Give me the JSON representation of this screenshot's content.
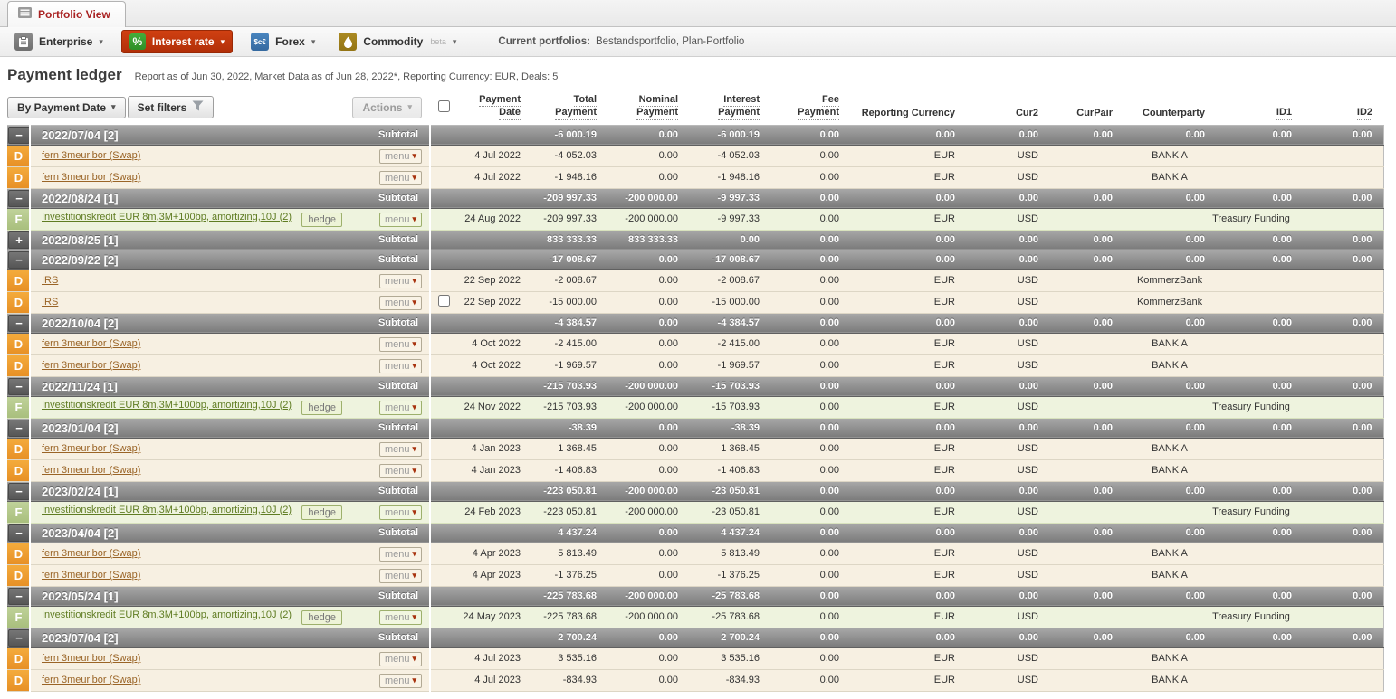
{
  "tab": {
    "label": "Portfolio View",
    "icon": "ledger-icon"
  },
  "toolbar": {
    "modules": [
      {
        "id": "enterprise",
        "label": "Enterprise",
        "icon": "clipboard-icon",
        "active": false
      },
      {
        "id": "interest-rate",
        "label": "Interest rate",
        "icon": "percent-icon",
        "active": true
      },
      {
        "id": "forex",
        "label": "Forex",
        "icon": "currency-exchange-icon",
        "icon_text": "$c€",
        "active": false
      },
      {
        "id": "commodity",
        "label": "Commodity",
        "icon": "droplet-icon",
        "beta_tag": "beta",
        "active": false
      }
    ],
    "current_portfolios_label": "Current portfolios:",
    "current_portfolios_value": "Bestandsportfolio, Plan-Portfolio"
  },
  "page": {
    "title": "Payment ledger",
    "subtitle": "Report as of Jun 30, 2022, Market Data as of Jun 28, 2022*, Reporting Currency: EUR, Deals: 5"
  },
  "controls": {
    "group_by_label": "By Payment Date",
    "set_filters_label": "Set filters",
    "actions_label": "Actions"
  },
  "colors": {
    "active_module_red": "#c1360e",
    "percent_green": "#2fa32f",
    "forex_blue": "#3a76b5",
    "commodity_gold": "#a5831c",
    "tab_text_red": "#a92222",
    "band_gray": "#7b7b7b",
    "d_badge_orange": "#eda032",
    "f_badge_green": "#b5c98f",
    "d_row_beige": "#f7f0e2",
    "f_row_green": "#eef3de",
    "d_link_brown": "#9a6426",
    "f_link_green": "#5f7c22"
  },
  "ledger": {
    "subtotal_label": "Subtotal",
    "hedge_label": "hedge",
    "menu_label": "menu",
    "columns": [
      {
        "id": "date",
        "lines": [
          "Payment",
          "Date"
        ],
        "sortable": true
      },
      {
        "id": "total",
        "lines": [
          "Total",
          "Payment"
        ],
        "sortable": true
      },
      {
        "id": "nominal",
        "lines": [
          "Nominal",
          "Payment"
        ],
        "sortable": true
      },
      {
        "id": "interest",
        "lines": [
          "Interest",
          "Payment"
        ],
        "sortable": true
      },
      {
        "id": "fee",
        "lines": [
          "Fee",
          "Payment"
        ],
        "sortable": true
      },
      {
        "id": "repcur",
        "lines": [
          "Reporting Currency"
        ],
        "sortable": false
      },
      {
        "id": "cur2",
        "lines": [
          "Cur2"
        ],
        "sortable": false
      },
      {
        "id": "curpair",
        "lines": [
          "CurPair"
        ],
        "sortable": false
      },
      {
        "id": "cpty",
        "lines": [
          "Counterparty"
        ],
        "sortable": false
      },
      {
        "id": "id1",
        "lines": [
          "ID1"
        ],
        "sortable": true
      },
      {
        "id": "id2",
        "lines": [
          "ID2"
        ],
        "sortable": true
      }
    ],
    "groups": [
      {
        "title": "2022/07/04 [2]",
        "expanded": true,
        "subtotal": {
          "total": "-6 000.19",
          "nominal": "0.00",
          "interest": "-6 000.19",
          "fee": "0.00",
          "repcur": "0.00",
          "cur2": "0.00",
          "curpair": "0.00",
          "cpty": "0.00",
          "id1": "0.00",
          "id2": "0.00"
        },
        "rows": [
          {
            "type": "D",
            "name": "fern 3meuribor (Swap)",
            "hedge": false,
            "checkbox": false,
            "date": "4 Jul 2022",
            "total": "-4 052.03",
            "nominal": "0.00",
            "interest": "-4 052.03",
            "fee": "0.00",
            "repcur": "EUR",
            "cur2": "USD",
            "curpair": "",
            "cpty": "BANK A",
            "id1": "",
            "id2": ""
          },
          {
            "type": "D",
            "name": "fern 3meuribor (Swap)",
            "hedge": false,
            "checkbox": false,
            "date": "4 Jul 2022",
            "total": "-1 948.16",
            "nominal": "0.00",
            "interest": "-1 948.16",
            "fee": "0.00",
            "repcur": "EUR",
            "cur2": "USD",
            "curpair": "",
            "cpty": "BANK A",
            "id1": "",
            "id2": ""
          }
        ]
      },
      {
        "title": "2022/08/24 [1]",
        "expanded": true,
        "subtotal": {
          "total": "-209 997.33",
          "nominal": "-200 000.00",
          "interest": "-9 997.33",
          "fee": "0.00",
          "repcur": "0.00",
          "cur2": "0.00",
          "curpair": "0.00",
          "cpty": "0.00",
          "id1": "0.00",
          "id2": "0.00"
        },
        "rows": [
          {
            "type": "F",
            "name": "Investitionskredit EUR 8m,3M+100bp, amortizing,10J (2)",
            "hedge": true,
            "checkbox": false,
            "date": "24 Aug 2022",
            "total": "-209 997.33",
            "nominal": "-200 000.00",
            "interest": "-9 997.33",
            "fee": "0.00",
            "repcur": "EUR",
            "cur2": "USD",
            "curpair": "",
            "cpty": "Treasury Funding",
            "id1": "",
            "id2": ""
          }
        ]
      },
      {
        "title": "2022/08/25 [1]",
        "expanded": false,
        "subtotal": {
          "total": "833 333.33",
          "nominal": "833 333.33",
          "interest": "0.00",
          "fee": "0.00",
          "repcur": "0.00",
          "cur2": "0.00",
          "curpair": "0.00",
          "cpty": "0.00",
          "id1": "0.00",
          "id2": "0.00"
        },
        "rows": []
      },
      {
        "title": "2022/09/22 [2]",
        "expanded": true,
        "subtotal": {
          "total": "-17 008.67",
          "nominal": "0.00",
          "interest": "-17 008.67",
          "fee": "0.00",
          "repcur": "0.00",
          "cur2": "0.00",
          "curpair": "0.00",
          "cpty": "0.00",
          "id1": "0.00",
          "id2": "0.00"
        },
        "rows": [
          {
            "type": "D",
            "name": "IRS",
            "hedge": false,
            "checkbox": false,
            "date": "22 Sep 2022",
            "total": "-2 008.67",
            "nominal": "0.00",
            "interest": "-2 008.67",
            "fee": "0.00",
            "repcur": "EUR",
            "cur2": "USD",
            "curpair": "",
            "cpty": "KommerzBank",
            "id1": "",
            "id2": ""
          },
          {
            "type": "D",
            "name": "IRS",
            "hedge": false,
            "checkbox": true,
            "date": "22 Sep 2022",
            "total": "-15 000.00",
            "nominal": "0.00",
            "interest": "-15 000.00",
            "fee": "0.00",
            "repcur": "EUR",
            "cur2": "USD",
            "curpair": "",
            "cpty": "KommerzBank",
            "id1": "",
            "id2": ""
          }
        ]
      },
      {
        "title": "2022/10/04 [2]",
        "expanded": true,
        "subtotal": {
          "total": "-4 384.57",
          "nominal": "0.00",
          "interest": "-4 384.57",
          "fee": "0.00",
          "repcur": "0.00",
          "cur2": "0.00",
          "curpair": "0.00",
          "cpty": "0.00",
          "id1": "0.00",
          "id2": "0.00"
        },
        "rows": [
          {
            "type": "D",
            "name": "fern 3meuribor (Swap)",
            "hedge": false,
            "checkbox": false,
            "date": "4 Oct 2022",
            "total": "-2 415.00",
            "nominal": "0.00",
            "interest": "-2 415.00",
            "fee": "0.00",
            "repcur": "EUR",
            "cur2": "USD",
            "curpair": "",
            "cpty": "BANK A",
            "id1": "",
            "id2": ""
          },
          {
            "type": "D",
            "name": "fern 3meuribor (Swap)",
            "hedge": false,
            "checkbox": false,
            "date": "4 Oct 2022",
            "total": "-1 969.57",
            "nominal": "0.00",
            "interest": "-1 969.57",
            "fee": "0.00",
            "repcur": "EUR",
            "cur2": "USD",
            "curpair": "",
            "cpty": "BANK A",
            "id1": "",
            "id2": ""
          }
        ]
      },
      {
        "title": "2022/11/24 [1]",
        "expanded": true,
        "subtotal": {
          "total": "-215 703.93",
          "nominal": "-200 000.00",
          "interest": "-15 703.93",
          "fee": "0.00",
          "repcur": "0.00",
          "cur2": "0.00",
          "curpair": "0.00",
          "cpty": "0.00",
          "id1": "0.00",
          "id2": "0.00"
        },
        "rows": [
          {
            "type": "F",
            "name": "Investitionskredit EUR 8m,3M+100bp, amortizing,10J (2)",
            "hedge": true,
            "checkbox": false,
            "date": "24 Nov 2022",
            "total": "-215 703.93",
            "nominal": "-200 000.00",
            "interest": "-15 703.93",
            "fee": "0.00",
            "repcur": "EUR",
            "cur2": "USD",
            "curpair": "",
            "cpty": "Treasury Funding",
            "id1": "",
            "id2": ""
          }
        ]
      },
      {
        "title": "2023/01/04 [2]",
        "expanded": true,
        "subtotal": {
          "total": "-38.39",
          "nominal": "0.00",
          "interest": "-38.39",
          "fee": "0.00",
          "repcur": "0.00",
          "cur2": "0.00",
          "curpair": "0.00",
          "cpty": "0.00",
          "id1": "0.00",
          "id2": "0.00"
        },
        "rows": [
          {
            "type": "D",
            "name": "fern 3meuribor (Swap)",
            "hedge": false,
            "checkbox": false,
            "date": "4 Jan 2023",
            "total": "1 368.45",
            "nominal": "0.00",
            "interest": "1 368.45",
            "fee": "0.00",
            "repcur": "EUR",
            "cur2": "USD",
            "curpair": "",
            "cpty": "BANK A",
            "id1": "",
            "id2": ""
          },
          {
            "type": "D",
            "name": "fern 3meuribor (Swap)",
            "hedge": false,
            "checkbox": false,
            "date": "4 Jan 2023",
            "total": "-1 406.83",
            "nominal": "0.00",
            "interest": "-1 406.83",
            "fee": "0.00",
            "repcur": "EUR",
            "cur2": "USD",
            "curpair": "",
            "cpty": "BANK A",
            "id1": "",
            "id2": ""
          }
        ]
      },
      {
        "title": "2023/02/24 [1]",
        "expanded": true,
        "subtotal": {
          "total": "-223 050.81",
          "nominal": "-200 000.00",
          "interest": "-23 050.81",
          "fee": "0.00",
          "repcur": "0.00",
          "cur2": "0.00",
          "curpair": "0.00",
          "cpty": "0.00",
          "id1": "0.00",
          "id2": "0.00"
        },
        "rows": [
          {
            "type": "F",
            "name": "Investitionskredit EUR 8m,3M+100bp, amortizing,10J (2)",
            "hedge": true,
            "checkbox": false,
            "date": "24 Feb 2023",
            "total": "-223 050.81",
            "nominal": "-200 000.00",
            "interest": "-23 050.81",
            "fee": "0.00",
            "repcur": "EUR",
            "cur2": "USD",
            "curpair": "",
            "cpty": "Treasury Funding",
            "id1": "",
            "id2": ""
          }
        ]
      },
      {
        "title": "2023/04/04 [2]",
        "expanded": true,
        "subtotal": {
          "total": "4 437.24",
          "nominal": "0.00",
          "interest": "4 437.24",
          "fee": "0.00",
          "repcur": "0.00",
          "cur2": "0.00",
          "curpair": "0.00",
          "cpty": "0.00",
          "id1": "0.00",
          "id2": "0.00"
        },
        "rows": [
          {
            "type": "D",
            "name": "fern 3meuribor (Swap)",
            "hedge": false,
            "checkbox": false,
            "date": "4 Apr 2023",
            "total": "5 813.49",
            "nominal": "0.00",
            "interest": "5 813.49",
            "fee": "0.00",
            "repcur": "EUR",
            "cur2": "USD",
            "curpair": "",
            "cpty": "BANK A",
            "id1": "",
            "id2": ""
          },
          {
            "type": "D",
            "name": "fern 3meuribor (Swap)",
            "hedge": false,
            "checkbox": false,
            "date": "4 Apr 2023",
            "total": "-1 376.25",
            "nominal": "0.00",
            "interest": "-1 376.25",
            "fee": "0.00",
            "repcur": "EUR",
            "cur2": "USD",
            "curpair": "",
            "cpty": "BANK A",
            "id1": "",
            "id2": ""
          }
        ]
      },
      {
        "title": "2023/05/24 [1]",
        "expanded": true,
        "subtotal": {
          "total": "-225 783.68",
          "nominal": "-200 000.00",
          "interest": "-25 783.68",
          "fee": "0.00",
          "repcur": "0.00",
          "cur2": "0.00",
          "curpair": "0.00",
          "cpty": "0.00",
          "id1": "0.00",
          "id2": "0.00"
        },
        "rows": [
          {
            "type": "F",
            "name": "Investitionskredit EUR 8m,3M+100bp, amortizing,10J (2)",
            "hedge": true,
            "checkbox": false,
            "date": "24 May 2023",
            "total": "-225 783.68",
            "nominal": "-200 000.00",
            "interest": "-25 783.68",
            "fee": "0.00",
            "repcur": "EUR",
            "cur2": "USD",
            "curpair": "",
            "cpty": "Treasury Funding",
            "id1": "",
            "id2": ""
          }
        ]
      },
      {
        "title": "2023/07/04 [2]",
        "expanded": true,
        "subtotal": {
          "total": "2 700.24",
          "nominal": "0.00",
          "interest": "2 700.24",
          "fee": "0.00",
          "repcur": "0.00",
          "cur2": "0.00",
          "curpair": "0.00",
          "cpty": "0.00",
          "id1": "0.00",
          "id2": "0.00"
        },
        "rows": [
          {
            "type": "D",
            "name": "fern 3meuribor (Swap)",
            "hedge": false,
            "checkbox": false,
            "date": "4 Jul 2023",
            "total": "3 535.16",
            "nominal": "0.00",
            "interest": "3 535.16",
            "fee": "0.00",
            "repcur": "EUR",
            "cur2": "USD",
            "curpair": "",
            "cpty": "BANK A",
            "id1": "",
            "id2": ""
          },
          {
            "type": "D",
            "name": "fern 3meuribor (Swap)",
            "hedge": false,
            "checkbox": false,
            "date": "4 Jul 2023",
            "total": "-834.93",
            "nominal": "0.00",
            "interest": "-834.93",
            "fee": "0.00",
            "repcur": "EUR",
            "cur2": "USD",
            "curpair": "",
            "cpty": "BANK A",
            "id1": "",
            "id2": ""
          }
        ]
      }
    ]
  }
}
